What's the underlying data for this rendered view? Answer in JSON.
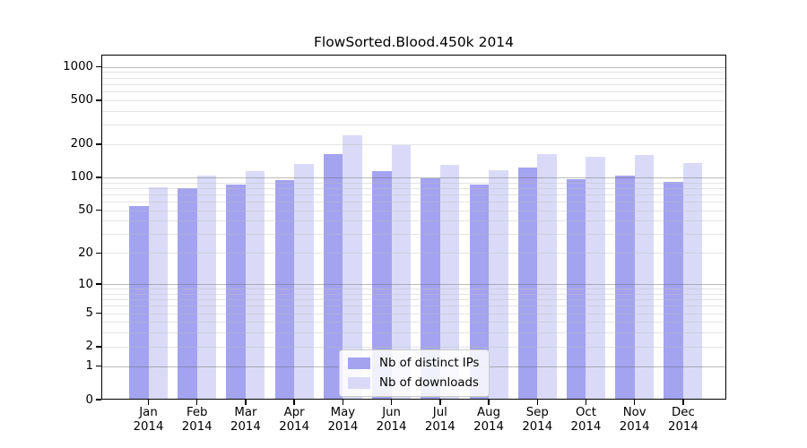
{
  "title": "FlowSorted.Blood.450k 2014",
  "legend": {
    "items": [
      {
        "label": "Nb of distinct IPs",
        "color": "#a3a3f0"
      },
      {
        "label": "Nb of downloads",
        "color": "#dadaf8"
      }
    ]
  },
  "chart_data": {
    "type": "bar",
    "title": "FlowSorted.Blood.450k 2014",
    "categories": [
      "Jan",
      "Feb",
      "Mar",
      "Apr",
      "May",
      "Jun",
      "Jul",
      "Aug",
      "Sep",
      "Oct",
      "Nov",
      "Dec"
    ],
    "x_year_label": "2014",
    "series": [
      {
        "name": "Nb of distinct IPs",
        "color": "#a3a3f0",
        "values": [
          55,
          80,
          86,
          95,
          163,
          115,
          99,
          86,
          124,
          96,
          104,
          91
        ]
      },
      {
        "name": "Nb of downloads",
        "color": "#dadaf8",
        "values": [
          82,
          103,
          114,
          132,
          240,
          195,
          129,
          116,
          163,
          154,
          159,
          134
        ]
      }
    ],
    "ylabel": "",
    "xlabel": "",
    "yscale": "log1p",
    "yticks": [
      0,
      1,
      2,
      5,
      10,
      20,
      50,
      100,
      200,
      500,
      1000
    ],
    "ylim": [
      0,
      1290
    ],
    "grid": "both",
    "legend_position": "lower center"
  }
}
